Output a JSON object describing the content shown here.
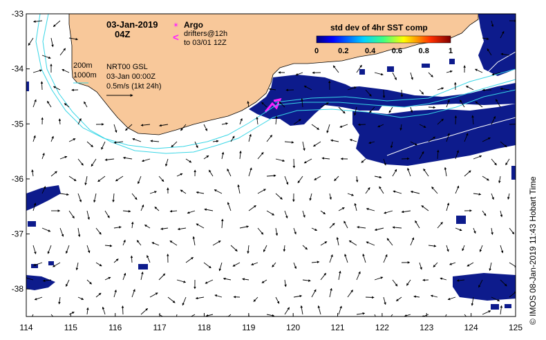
{
  "title": {
    "date": "03-Jan-2019",
    "time": "04Z"
  },
  "legend_argo": {
    "symbol": "✴",
    "label": "Argo"
  },
  "legend_drifters": {
    "symbol": "<",
    "line1": "drifters@12h",
    "line2": "to 03/01 12Z"
  },
  "isobaths": {
    "a": "200m",
    "b": "1000m"
  },
  "product": {
    "line1": "NRT00 GSL",
    "line2": "03-Jan 00:00Z",
    "line3": "0.5m/s (1kt 24h)"
  },
  "colorbar": {
    "title": "std dev of 4hr SST comp",
    "ticks": [
      "0",
      "0.2",
      "0.4",
      "0.6",
      "0.8",
      "1"
    ]
  },
  "axes": {
    "x_ticks": [
      "114",
      "115",
      "116",
      "117",
      "118",
      "119",
      "120",
      "121",
      "122",
      "123",
      "124",
      "125"
    ],
    "y_ticks": [
      "-33",
      "-34",
      "-35",
      "-36",
      "-37",
      "-38"
    ],
    "lon_range": [
      114,
      125
    ],
    "lat_range": [
      -38.5,
      -33
    ]
  },
  "credit": "©  IMOS 08-Jan-2019 11:43 Hobart Time",
  "colors": {
    "land": "#f8c89a",
    "isobath": "#38d6e6",
    "sst_low": "#0d1b8c",
    "drifter": "#ff20ff"
  }
}
